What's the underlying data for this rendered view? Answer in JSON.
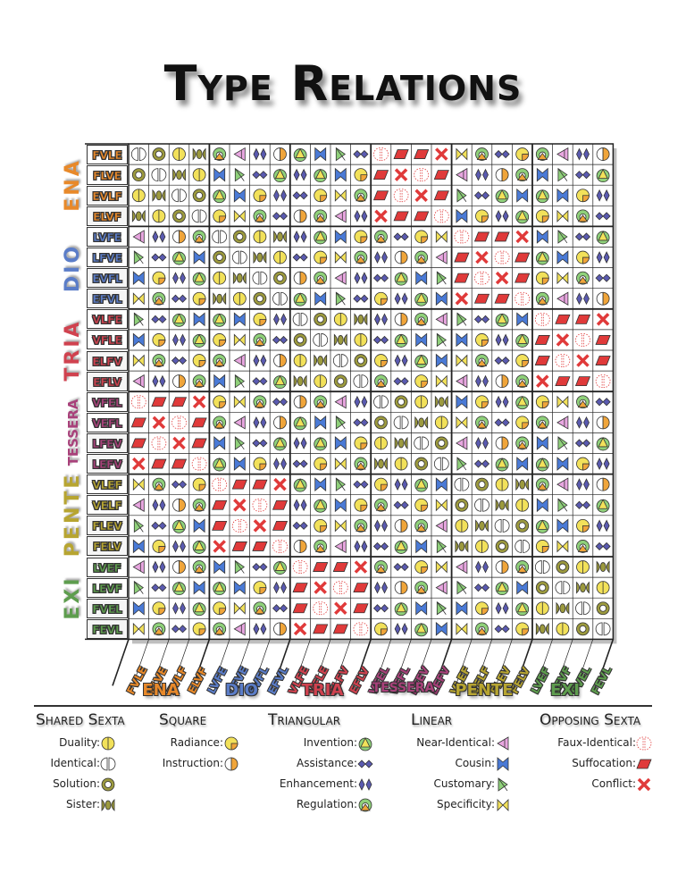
{
  "title": "Type Relations",
  "groups": [
    {
      "name": "ENA",
      "color": "#E8892A",
      "types": [
        "FVLE",
        "FLVE",
        "EVLF",
        "ELVF"
      ]
    },
    {
      "name": "DIO",
      "color": "#5B7DC8",
      "types": [
        "LVFE",
        "LFVE",
        "EVFL",
        "EFVL"
      ]
    },
    {
      "name": "TRIA",
      "color": "#D0424F",
      "types": [
        "VLFE",
        "VFLE",
        "ELFV",
        "EFLV"
      ]
    },
    {
      "name": "TESSERA",
      "color": "#A8417A",
      "types": [
        "VFEL",
        "VEFL",
        "LFEV",
        "LEFV"
      ]
    },
    {
      "name": "PENTE",
      "color": "#B7A531",
      "types": [
        "VLEF",
        "VELF",
        "FLEV",
        "FELV"
      ]
    },
    {
      "name": "EXI",
      "color": "#5E9D4E",
      "types": [
        "LVEF",
        "LEVF",
        "FVEL",
        "FEVL"
      ]
    }
  ],
  "relations": {
    "shared_sexta": {
      "heading": "Shared Sexta",
      "items": [
        {
          "label": "Duality:",
          "icon": "duality-icon"
        },
        {
          "label": "Identical:",
          "icon": "identical-icon"
        },
        {
          "label": "Solution:",
          "icon": "solution-icon"
        },
        {
          "label": "Sister:",
          "icon": "sister-icon"
        }
      ]
    },
    "square": {
      "heading": "Square",
      "items": [
        {
          "label": "Radiance:",
          "icon": "radiance-icon"
        },
        {
          "label": "Instruction:",
          "icon": "instruction-icon"
        }
      ]
    },
    "triangular": {
      "heading": "Triangular",
      "items": [
        {
          "label": "Invention:",
          "icon": "invention-icon"
        },
        {
          "label": "Assistance:",
          "icon": "assistance-icon"
        },
        {
          "label": "Enhancement:",
          "icon": "enhancement-icon"
        },
        {
          "label": "Regulation:",
          "icon": "regulation-icon"
        }
      ]
    },
    "linear": {
      "heading": "Linear",
      "items": [
        {
          "label": "Near-Identical:",
          "icon": "near-identical-icon"
        },
        {
          "label": "Cousin:",
          "icon": "cousin-icon"
        },
        {
          "label": "Customary:",
          "icon": "customary-icon"
        },
        {
          "label": "Specificity:",
          "icon": "specificity-icon"
        }
      ]
    },
    "opposing_sexta": {
      "heading": "Opposing Sexta",
      "items": [
        {
          "label": "Faux-Identical:",
          "icon": "faux-identical-icon"
        },
        {
          "label": "Suffocation:",
          "icon": "suffocation-icon"
        },
        {
          "label": "Conflict:",
          "icon": "conflict-icon"
        }
      ]
    }
  },
  "icon_colors": {
    "yellow": "#F2E15A",
    "orange": "#F0A53A",
    "green": "#8FD17A",
    "olive": "#9C9A3E",
    "purple": "#5A5AB0",
    "pink": "#E8A6E0",
    "blue": "#4A7AD6",
    "red": "#E03A3A",
    "white": "#FFFFFF"
  }
}
